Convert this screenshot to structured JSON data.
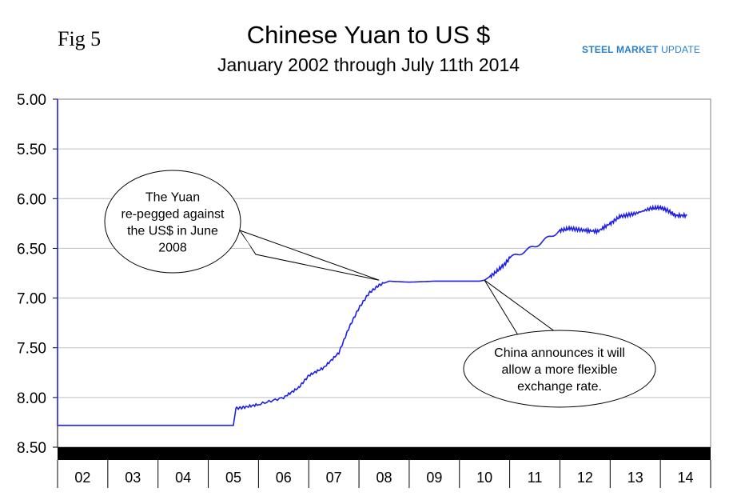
{
  "figure_label": "Fig 5",
  "logo": {
    "brand_bold": "STEEL MARKET",
    "brand_light": " UPDATE"
  },
  "colors": {
    "series": "#1f1fe8",
    "axis_band": "#000000",
    "grid": "#bfbfbf",
    "logo": "#2a7fc9"
  },
  "chart_data": {
    "type": "line",
    "title": "Chinese Yuan to US $",
    "subtitle": "January 2002 through July 11th 2014",
    "xlabel": "",
    "ylabel": "",
    "y_inverted": true,
    "ylim": [
      5.0,
      8.5
    ],
    "xlim": [
      2002.0,
      2015.0
    ],
    "y_ticks": [
      "5.00",
      "5.50",
      "6.00",
      "6.50",
      "7.00",
      "7.50",
      "8.00",
      "8.50"
    ],
    "x_tick_labels": [
      "02",
      "03",
      "04",
      "05",
      "06",
      "07",
      "08",
      "09",
      "10",
      "11",
      "12",
      "13",
      "14"
    ],
    "grid": true,
    "series": [
      {
        "name": "",
        "x": [
          2002.0,
          2002.5,
          2003.0,
          2003.5,
          2004.0,
          2004.5,
          2005.0,
          2005.5,
          2005.55,
          2005.7,
          2006.0,
          2006.5,
          2006.8,
          2007.0,
          2007.3,
          2007.6,
          2007.8,
          2008.0,
          2008.2,
          2008.4,
          2008.6,
          2009.0,
          2009.5,
          2010.0,
          2010.4,
          2010.5,
          2010.7,
          2010.9,
          2011.0,
          2011.5,
          2012.0,
          2012.2,
          2012.5,
          2012.75,
          2013.0,
          2013.2,
          2013.5,
          2013.8,
          2014.0,
          2014.15,
          2014.3,
          2014.53
        ],
        "values": [
          8.28,
          8.28,
          8.28,
          8.28,
          8.28,
          8.28,
          8.28,
          8.28,
          8.11,
          8.1,
          8.07,
          8.0,
          7.9,
          7.78,
          7.7,
          7.55,
          7.3,
          7.1,
          6.95,
          6.87,
          6.83,
          6.84,
          6.83,
          6.83,
          6.83,
          6.82,
          6.75,
          6.66,
          6.6,
          6.48,
          6.32,
          6.3,
          6.32,
          6.33,
          6.25,
          6.18,
          6.15,
          6.1,
          6.09,
          6.12,
          6.17,
          6.17
        ]
      }
    ],
    "annotations": [
      {
        "text_lines": [
          "The Yuan",
          "re-pegged against",
          "the US$ in June",
          "2008"
        ],
        "points_to": [
          2008.4,
          6.82
        ]
      },
      {
        "text_lines": [
          "China announces it will",
          "allow a more flexible",
          "exchange rate."
        ],
        "points_to": [
          2010.5,
          6.82
        ]
      }
    ]
  }
}
